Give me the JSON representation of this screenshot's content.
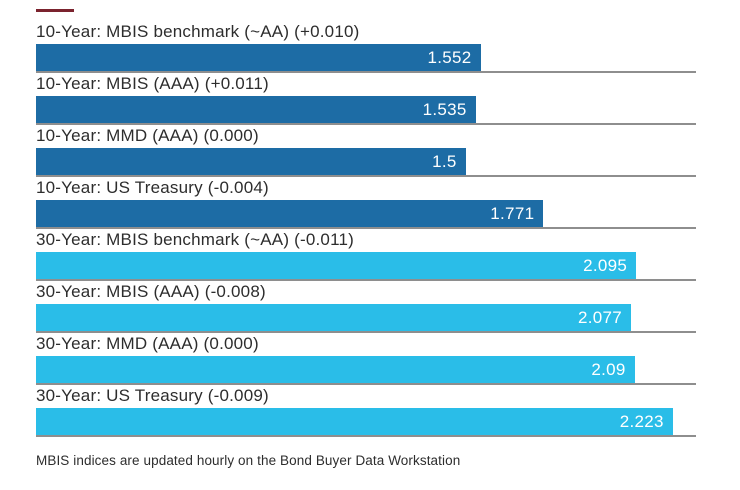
{
  "chart_data": {
    "type": "bar",
    "orientation": "horizontal",
    "title": "",
    "xlabel": "",
    "ylabel": "",
    "xlim": [
      0,
      2.304
    ],
    "grid": false,
    "legend": "none",
    "categories": [
      "10-Year: MBIS benchmark (~AA) (+0.010)",
      "10-Year: MBIS (AAA) (+0.011)",
      "10-Year: MMD (AAA) (0.000)",
      "10-Year: US Treasury (-0.004)",
      "30-Year: MBIS benchmark (~AA) (-0.011)",
      "30-Year: MBIS (AAA) (-0.008)",
      "30-Year: MMD (AAA) (0.000)",
      "30-Year: US Treasury (-0.009)"
    ],
    "values": [
      1.552,
      1.535,
      1.5,
      1.771,
      2.095,
      2.077,
      2.09,
      2.223
    ],
    "value_labels": [
      "1.552",
      "1.535",
      "1.5",
      "1.771",
      "2.095",
      "2.077",
      "2.09",
      "2.223"
    ],
    "groups": [
      "10-Year",
      "10-Year",
      "10-Year",
      "10-Year",
      "30-Year",
      "30-Year",
      "30-Year",
      "30-Year"
    ],
    "colors": {
      "ten_year": "#1d6ca5",
      "thirty_year": "#2abde8"
    },
    "separator_color": "#8e8e8e",
    "accent_color": "#7b232e",
    "value_label_color": "#ffffff",
    "category_label_color": "#2d2d2d"
  },
  "footer": {
    "note": "MBIS indices are updated hourly on the Bond Buyer Data Workstation"
  }
}
